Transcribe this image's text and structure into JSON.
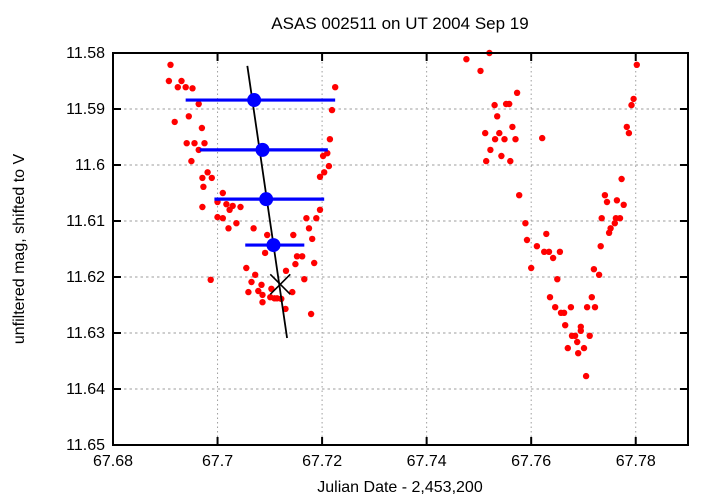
{
  "chart_data": {
    "type": "scatter",
    "title": "ASAS 002511 on UT 2004 Sep 19",
    "xlabel": "Julian Date - 2,453,200",
    "ylabel": "unfiltered mag, shifted to V",
    "xlim": [
      67.68,
      67.79
    ],
    "ylim": [
      11.65,
      11.58
    ],
    "y_axis_inverted": true,
    "grid": true,
    "x_ticks": [
      67.68,
      67.7,
      67.72,
      67.74,
      67.76,
      67.78
    ],
    "x_tick_labels": [
      "67.68",
      "67.7",
      "67.72",
      "67.74",
      "67.76",
      "67.78"
    ],
    "y_ticks": [
      11.58,
      11.59,
      11.6,
      11.61,
      11.62,
      11.63,
      11.64,
      11.65
    ],
    "y_tick_labels": [
      "11.58",
      "11.59",
      "11.6",
      "11.61",
      "11.62",
      "11.63",
      "11.64",
      "11.65"
    ],
    "colors": {
      "photometry": "#ff0000",
      "binned": "#0000ff",
      "fit": "#000000",
      "grid": "#9e9e9e",
      "axis": "#000000",
      "background": "#ffffff"
    },
    "series": [
      {
        "name": "unfiltered photometry",
        "type": "scatter",
        "marker": "dot",
        "color": "#ff0000",
        "points": [
          [
            67.691,
            11.5821
          ],
          [
            67.6907,
            11.585
          ],
          [
            67.6931,
            11.585
          ],
          [
            67.6924,
            11.5861
          ],
          [
            67.6939,
            11.5861
          ],
          [
            67.6952,
            11.5863
          ],
          [
            67.6964,
            11.5891
          ],
          [
            67.6945,
            11.5913
          ],
          [
            67.6918,
            11.5923
          ],
          [
            67.697,
            11.5934
          ],
          [
            67.6941,
            11.5961
          ],
          [
            67.6956,
            11.5961
          ],
          [
            67.6975,
            11.5961
          ],
          [
            67.6964,
            11.5973
          ],
          [
            67.695,
            11.5993
          ],
          [
            67.6981,
            11.6013
          ],
          [
            67.6989,
            11.6023
          ],
          [
            67.6971,
            11.6023
          ],
          [
            67.6973,
            11.6039
          ],
          [
            67.701,
            11.605
          ],
          [
            67.7,
            11.6066
          ],
          [
            67.7017,
            11.607
          ],
          [
            67.7029,
            11.6073
          ],
          [
            67.7044,
            11.6075
          ],
          [
            67.7023,
            11.608
          ],
          [
            67.6971,
            11.6075
          ],
          [
            67.7,
            11.6093
          ],
          [
            67.701,
            11.6095
          ],
          [
            67.7021,
            11.6113
          ],
          [
            67.7036,
            11.6104
          ],
          [
            67.7069,
            11.6113
          ],
          [
            67.7095,
            11.6125
          ],
          [
            67.7145,
            11.6125
          ],
          [
            67.717,
            11.6095
          ],
          [
            67.7189,
            11.6095
          ],
          [
            67.7196,
            11.608
          ],
          [
            67.7175,
            11.6113
          ],
          [
            67.7181,
            11.6132
          ],
          [
            67.7152,
            11.6163
          ],
          [
            67.7162,
            11.6163
          ],
          [
            67.7149,
            11.6177
          ],
          [
            67.7185,
            11.6175
          ],
          [
            67.7091,
            11.6157
          ],
          [
            67.7055,
            11.6184
          ],
          [
            67.7131,
            11.6189
          ],
          [
            67.7072,
            11.6196
          ],
          [
            67.7166,
            11.6204
          ],
          [
            67.7065,
            11.6209
          ],
          [
            67.7084,
            11.6214
          ],
          [
            67.7078,
            11.6225
          ],
          [
            67.6987,
            11.6205
          ],
          [
            67.7059,
            11.6227
          ],
          [
            67.7103,
            11.6221
          ],
          [
            67.7143,
            11.6227
          ],
          [
            67.7109,
            11.6238
          ],
          [
            67.7086,
            11.6232
          ],
          [
            67.7086,
            11.6245
          ],
          [
            67.7101,
            11.6236
          ],
          [
            67.7114,
            11.6238
          ],
          [
            67.7122,
            11.6239
          ],
          [
            67.713,
            11.6257
          ],
          [
            67.7179,
            11.6266
          ],
          [
            67.7225,
            11.5861
          ],
          [
            67.7219,
            11.5902
          ],
          [
            67.7215,
            11.5954
          ],
          [
            67.721,
            11.5979
          ],
          [
            67.7202,
            11.5984
          ],
          [
            67.7213,
            11.6002
          ],
          [
            67.7204,
            11.6013
          ],
          [
            67.7196,
            11.6021
          ],
          [
            67.7476,
            11.5811
          ],
          [
            67.7503,
            11.5832
          ],
          [
            67.752,
            11.58
          ],
          [
            67.7573,
            11.5871
          ],
          [
            67.753,
            11.5893
          ],
          [
            67.7552,
            11.5891
          ],
          [
            67.7558,
            11.5891
          ],
          [
            67.7535,
            11.5913
          ],
          [
            67.7564,
            11.5932
          ],
          [
            67.7512,
            11.5943
          ],
          [
            67.7539,
            11.5943
          ],
          [
            67.7531,
            11.5954
          ],
          [
            67.7549,
            11.5954
          ],
          [
            67.757,
            11.5954
          ],
          [
            67.7621,
            11.5952
          ],
          [
            67.7522,
            11.5973
          ],
          [
            67.7543,
            11.5984
          ],
          [
            67.7514,
            11.5993
          ],
          [
            67.756,
            11.5993
          ],
          [
            67.7577,
            11.6054
          ],
          [
            67.7589,
            11.6104
          ],
          [
            67.7592,
            11.6134
          ],
          [
            67.7611,
            11.6145
          ],
          [
            67.7629,
            11.6123
          ],
          [
            67.7625,
            11.6155
          ],
          [
            67.7634,
            11.6155
          ],
          [
            67.7642,
            11.6166
          ],
          [
            67.7655,
            11.6155
          ],
          [
            67.76,
            11.6184
          ],
          [
            67.765,
            11.6204
          ],
          [
            67.7636,
            11.6236
          ],
          [
            67.7646,
            11.6254
          ],
          [
            67.7657,
            11.6264
          ],
          [
            67.7663,
            11.6264
          ],
          [
            67.7676,
            11.6254
          ],
          [
            67.7665,
            11.6286
          ],
          [
            67.7695,
            11.6289
          ],
          [
            67.7716,
            11.6236
          ],
          [
            67.7707,
            11.6254
          ],
          [
            67.7722,
            11.6254
          ],
          [
            67.772,
            11.6186
          ],
          [
            67.773,
            11.6196
          ],
          [
            67.7733,
            11.6145
          ],
          [
            67.7735,
            11.6095
          ],
          [
            67.7741,
            11.6054
          ],
          [
            67.7745,
            11.6066
          ],
          [
            67.7764,
            11.6063
          ],
          [
            67.7777,
            11.6071
          ],
          [
            67.7749,
            11.6121
          ],
          [
            67.7752,
            11.6113
          ],
          [
            67.776,
            11.6104
          ],
          [
            67.7762,
            11.6095
          ],
          [
            67.777,
            11.6095
          ],
          [
            67.7802,
            11.5821
          ],
          [
            67.7796,
            11.5882
          ],
          [
            67.7792,
            11.5893
          ],
          [
            67.7783,
            11.5932
          ],
          [
            67.7787,
            11.5943
          ],
          [
            67.7773,
            11.6025
          ],
          [
            67.7695,
            11.6296
          ],
          [
            67.7678,
            11.6305
          ],
          [
            67.7684,
            11.6305
          ],
          [
            67.7712,
            11.6305
          ],
          [
            67.7688,
            11.6316
          ],
          [
            67.767,
            11.6327
          ],
          [
            67.7701,
            11.6327
          ],
          [
            67.769,
            11.6336
          ],
          [
            67.7705,
            11.6377
          ]
        ]
      },
      {
        "name": "binned means with x error bars",
        "type": "scatter_xerr",
        "marker": "circle",
        "color": "#0000ff",
        "points": [
          {
            "x": 67.707,
            "y": 11.5884,
            "xlow": 67.6939,
            "xhigh": 67.7225
          },
          {
            "x": 67.7086,
            "y": 11.5973,
            "xlow": 67.6966,
            "xhigh": 67.7211
          },
          {
            "x": 67.7093,
            "y": 11.6061,
            "xlow": 67.6994,
            "xhigh": 67.7204
          },
          {
            "x": 67.7107,
            "y": 11.6143,
            "xlow": 67.7053,
            "xhigh": 67.7166
          }
        ]
      },
      {
        "name": "linear trend through binned means",
        "type": "line",
        "color": "#000000",
        "points": [
          [
            67.7057,
            11.5823
          ],
          [
            67.7133,
            11.6309
          ]
        ]
      },
      {
        "name": "minimum time marker",
        "type": "x_marker",
        "color": "#000000",
        "point": [
          67.712,
          11.6213
        ]
      }
    ]
  }
}
